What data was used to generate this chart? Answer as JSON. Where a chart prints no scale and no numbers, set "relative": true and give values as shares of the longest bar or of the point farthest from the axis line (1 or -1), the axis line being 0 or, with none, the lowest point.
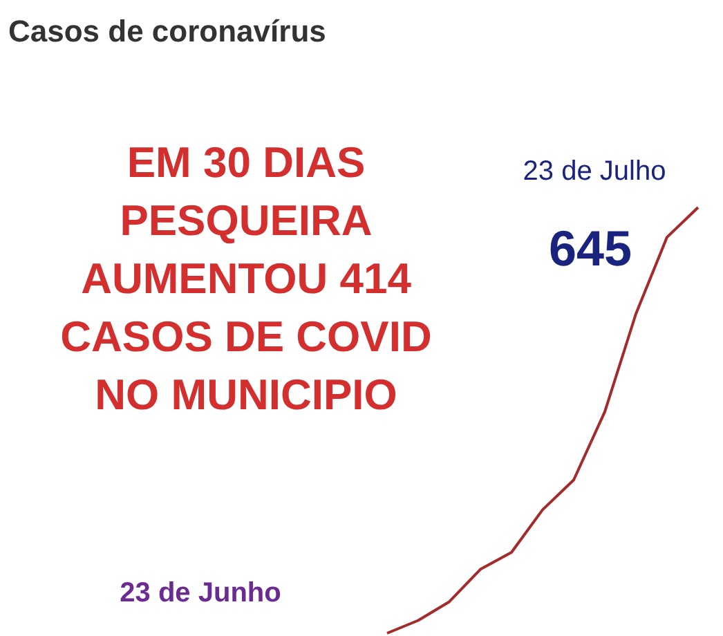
{
  "chart_data": {
    "type": "line",
    "title": "Casos de coronavírus",
    "relative": true,
    "categories": [
      null,
      null,
      null,
      null,
      null,
      null,
      null,
      null,
      null,
      null,
      null
    ],
    "series": [
      {
        "color": "#a52a2a",
        "values": [
          0,
          0.03,
          0.074,
          0.15,
          0.19,
          0.29,
          0.36,
          0.52,
          0.75,
          0.93,
          1
        ]
      }
    ],
    "annotations": [
      "EM 30 DIAS\nPESQUEIRA\nAUMENTOU 414\nCASOS DE COVID\nNO MUNICIPIO",
      "23 de Julho",
      "23 de Junho",
      "645"
    ],
    "marker": "none",
    "line_style": "solid"
  }
}
